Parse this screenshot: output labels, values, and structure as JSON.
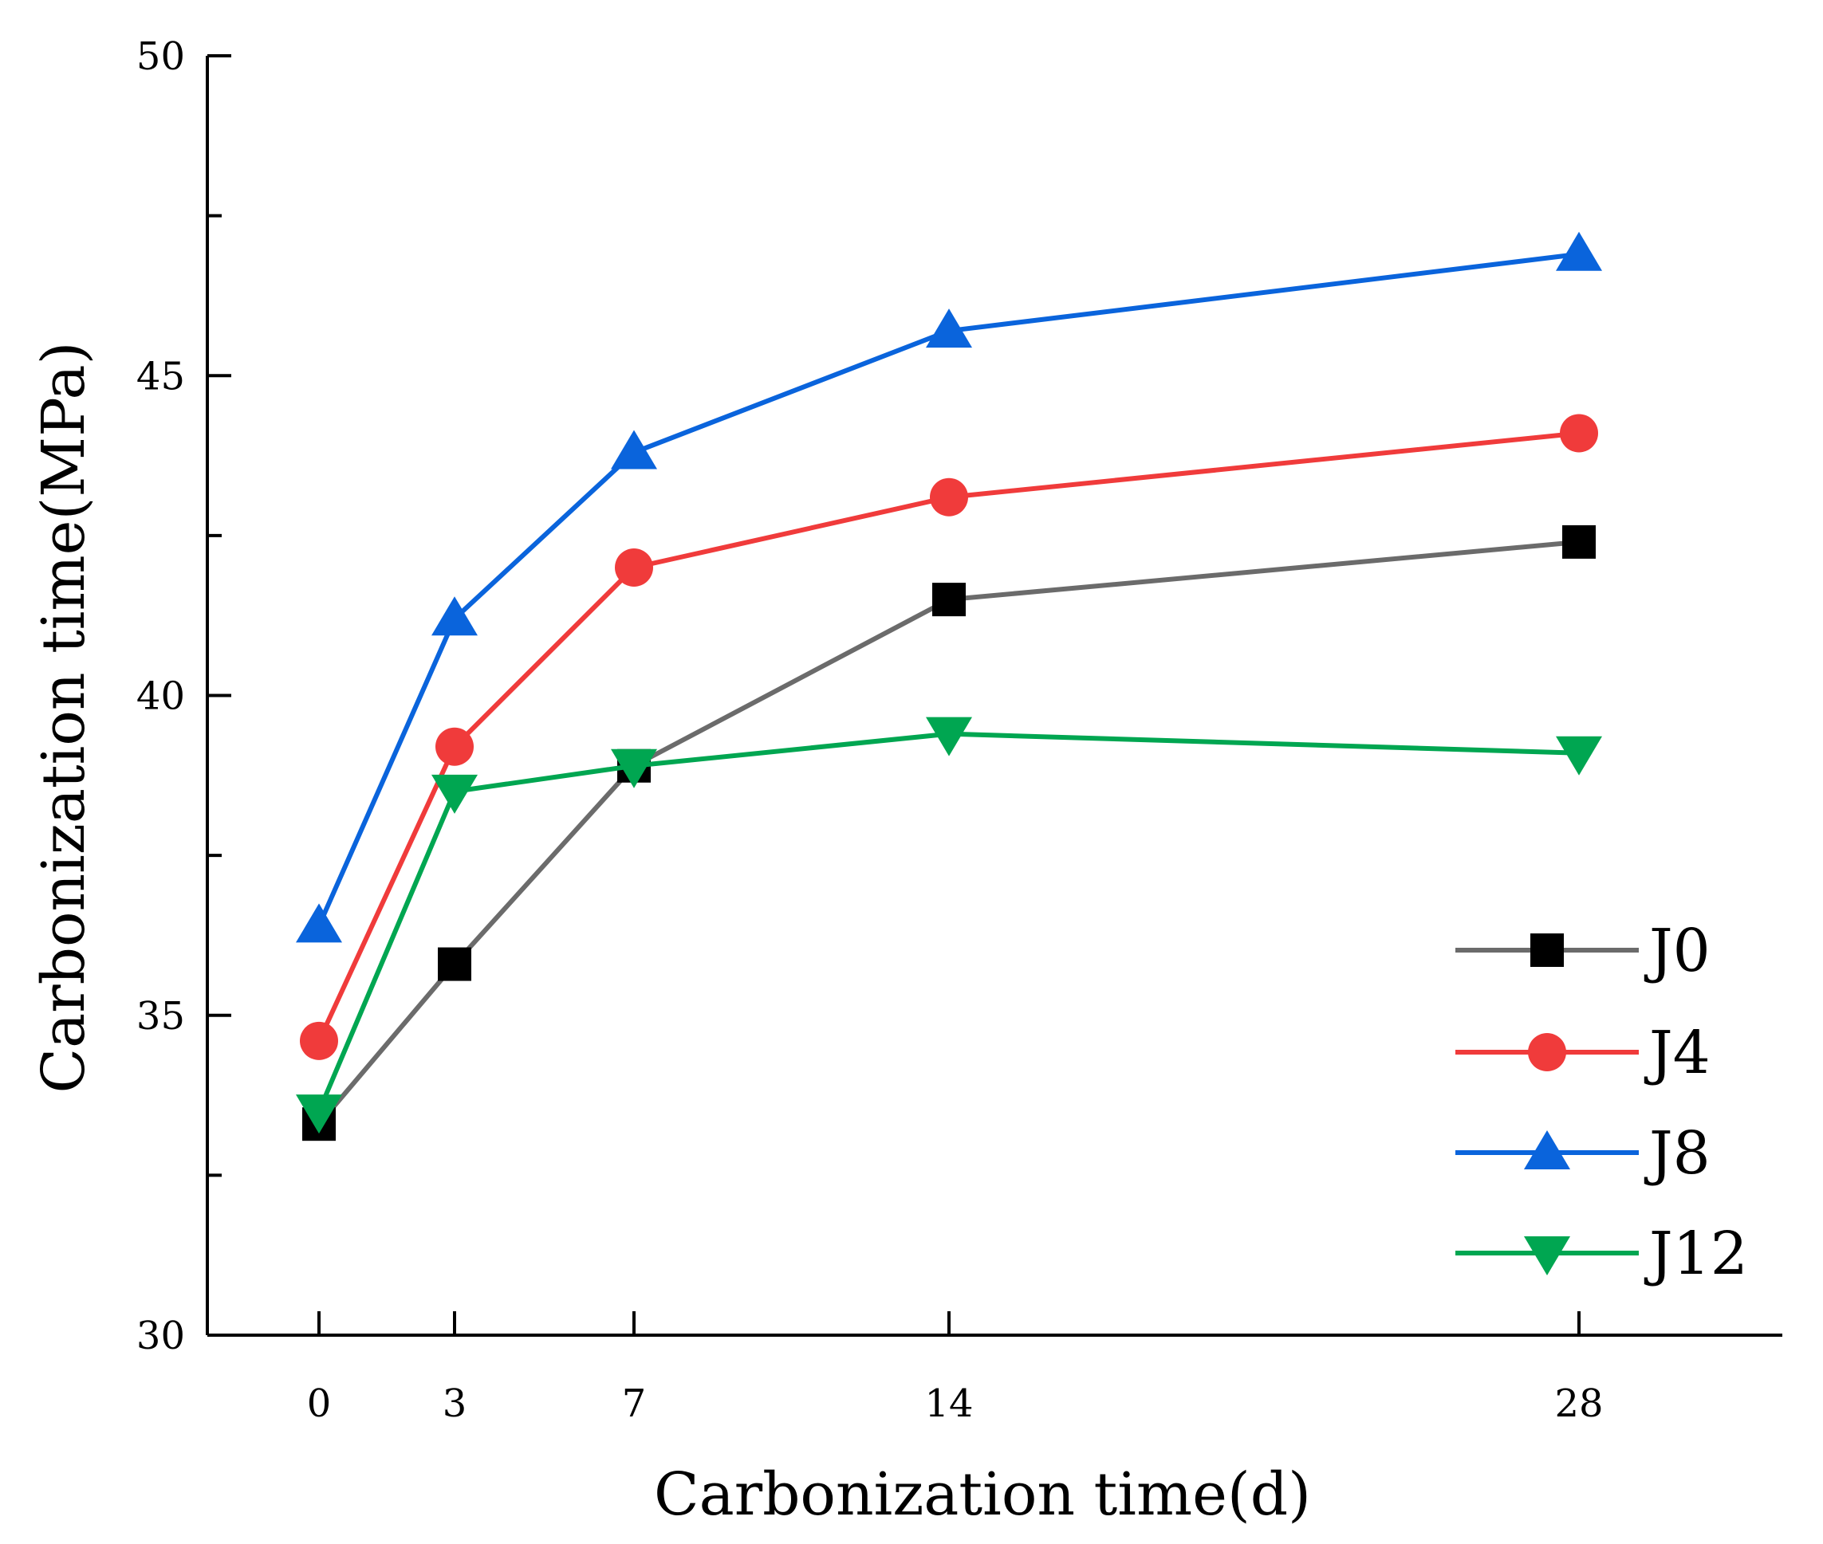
{
  "chart_data": {
    "type": "line",
    "title": "",
    "xlabel": "Carbonization time(d)",
    "ylabel": "Carbonization time(MPa)",
    "x": [
      0,
      3,
      7,
      14,
      28
    ],
    "x_tick_labels": [
      "0",
      "3",
      "7",
      "14",
      "28"
    ],
    "ylim": [
      30,
      50
    ],
    "y_ticks": [
      30,
      35,
      40,
      45,
      50
    ],
    "y_tick_labels": [
      "30",
      "35",
      "40",
      "45",
      "50"
    ],
    "grid": false,
    "legend_position": "bottom-right",
    "series": [
      {
        "name": "J0",
        "color": "#6b6b6b",
        "marker_color": "#000000",
        "marker": "square",
        "values": [
          33.3,
          35.8,
          38.9,
          41.5,
          42.4
        ]
      },
      {
        "name": "J4",
        "color": "#f03b3b",
        "marker_color": "#f03b3b",
        "marker": "circle",
        "values": [
          34.6,
          39.2,
          42.0,
          43.1,
          44.1
        ]
      },
      {
        "name": "J8",
        "color": "#0a64dc",
        "marker_color": "#0a64dc",
        "marker": "triangle-up",
        "values": [
          36.4,
          41.2,
          43.8,
          45.7,
          46.9
        ]
      },
      {
        "name": "J12",
        "color": "#00a651",
        "marker_color": "#00a651",
        "marker": "triangle-down",
        "values": [
          33.5,
          38.5,
          38.9,
          39.4,
          39.1
        ]
      }
    ]
  }
}
